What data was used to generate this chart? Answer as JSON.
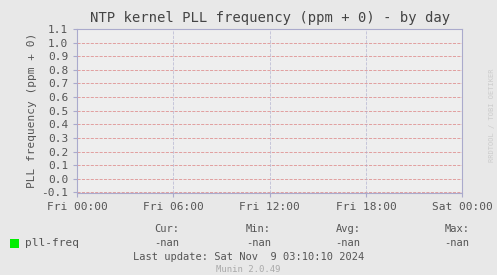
{
  "title": "NTP kernel PLL frequency (ppm + 0) - by day",
  "ylabel": "PLL frequency (ppm + 0)",
  "ylim": [
    -0.1,
    1.1
  ],
  "yticks": [
    -0.1,
    0.0,
    0.1,
    0.2,
    0.3,
    0.4,
    0.5,
    0.6,
    0.7,
    0.8,
    0.9,
    1.0,
    1.1
  ],
  "xtick_labels": [
    "Fri 00:00",
    "Fri 06:00",
    "Fri 12:00",
    "Fri 18:00",
    "Sat 00:00"
  ],
  "xtick_positions": [
    0.0,
    0.25,
    0.5,
    0.75,
    1.0
  ],
  "xlim": [
    0.0,
    1.0
  ],
  "background_color": "#e8e8e8",
  "plot_bg_color": "#eeeeee",
  "grid_color_h": "#dd8888",
  "grid_color_v": "#aaaacc",
  "border_color": "#aaaacc",
  "title_color": "#444444",
  "title_fontsize": 10,
  "ylabel_fontsize": 8,
  "tick_fontsize": 8,
  "legend_label": "pll-freq",
  "legend_color": "#00ee00",
  "cur_label": "Cur:",
  "cur_val": "-nan",
  "min_label": "Min:",
  "min_val": "-nan",
  "avg_label": "Avg:",
  "avg_val": "-nan",
  "max_label": "Max:",
  "max_val": "-nan",
  "last_update": "Last update: Sat Nov  9 03:10:10 2024",
  "munin_version": "Munin 2.0.49",
  "watermark": "RRDTOOL / TOBI OETIKER",
  "axis_arrow_color": "#aaaacc",
  "tick_color": "#aaaacc",
  "label_color": "#555555",
  "footer_color": "#aaaaaa"
}
